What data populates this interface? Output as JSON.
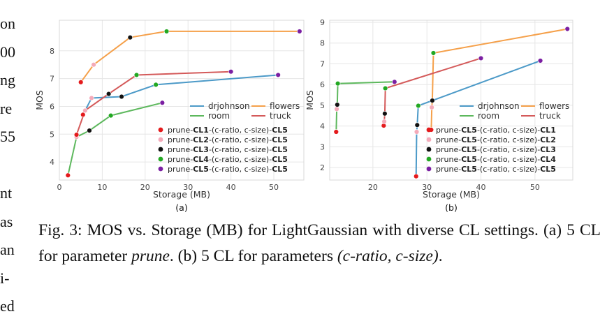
{
  "left_margin_text": [
    "on",
    "00",
    "ng",
    "re",
    "55",
    "",
    "nt",
    "as",
    "an",
    "i-",
    "ed"
  ],
  "caption": {
    "part1": "Fig. 3: MOS vs. Storage (MB) for LightGaussian with diverse CL settings. (a) 5 CL for parameter ",
    "italic1": "prune",
    "part2": ". (b) 5 CL for parameters ",
    "italic2": "(c-ratio, c-size)",
    "part3": "."
  },
  "colors": {
    "drjohnson": "#4C9AC8",
    "flowers": "#F5A04A",
    "room": "#5DB85D",
    "truck": "#D45A5A",
    "CL1": "#E41A1C",
    "CL2": "#F4AAB9",
    "CL3": "#111111",
    "CL4": "#22A822",
    "CL5": "#7B1FA2"
  },
  "chart_data": [
    {
      "type": "line",
      "panel_label": "(a)",
      "xlabel": "Storage (MB)",
      "ylabel": "MOS",
      "xlim": [
        0,
        57
      ],
      "ylim": [
        3.35,
        9.1
      ],
      "xticks": [
        0,
        10,
        20,
        30,
        40,
        50
      ],
      "yticks": [
        4,
        5,
        6,
        7,
        8
      ],
      "grid": true,
      "legend_placement": "right",
      "series": [
        {
          "name": "drjohnson",
          "color_key": "drjohnson",
          "points": [
            [
              5.5,
              5.7
            ],
            [
              7.5,
              6.3
            ],
            [
              14.5,
              6.35
            ],
            [
              22.5,
              6.78
            ],
            [
              51,
              7.13
            ]
          ],
          "markers": [
            "CL1",
            "CL2",
            "CL3",
            "CL4",
            "CL5"
          ]
        },
        {
          "name": "flowers",
          "color_key": "flowers",
          "points": [
            [
              5.0,
              6.87
            ],
            [
              8.0,
              7.5
            ],
            [
              16.5,
              8.48
            ],
            [
              25,
              8.7
            ],
            [
              56,
              8.7
            ]
          ],
          "markers": [
            "CL1",
            "CL2",
            "CL3",
            "CL4",
            "CL5"
          ]
        },
        {
          "name": "room",
          "color_key": "room",
          "points": [
            [
              2.0,
              3.52
            ],
            [
              4.0,
              4.9
            ],
            [
              7.0,
              5.13
            ],
            [
              12.0,
              5.67
            ],
            [
              24.0,
              6.13
            ]
          ],
          "markers": [
            "CL1",
            "CL2",
            "CL3",
            "CL4",
            "CL5"
          ]
        },
        {
          "name": "truck",
          "color_key": "truck",
          "points": [
            [
              4.0,
              4.98
            ],
            [
              6.0,
              5.85
            ],
            [
              11.5,
              6.45
            ],
            [
              18.0,
              7.13
            ],
            [
              40.0,
              7.25
            ]
          ],
          "markers": [
            "CL1",
            "CL2",
            "CL3",
            "CL4",
            "CL5"
          ]
        }
      ],
      "legend_lines": [
        "drjohnson",
        "flowers",
        "room",
        "truck"
      ],
      "legend_markers": [
        {
          "marker": "CL1",
          "pre": "prune-",
          "b1": "CL1",
          "mid": "-(c-ratio, c-size)-",
          "b2": "CL5"
        },
        {
          "marker": "CL2",
          "pre": "prune-",
          "b1": "CL2",
          "mid": "-(c-ratio, c-size)-",
          "b2": "CL5"
        },
        {
          "marker": "CL3",
          "pre": "prune-",
          "b1": "CL3",
          "mid": "-(c-ratio, c-size)-",
          "b2": "CL5"
        },
        {
          "marker": "CL4",
          "pre": "prune-",
          "b1": "CL4",
          "mid": "-(c-ratio, c-size)-",
          "b2": "CL5"
        },
        {
          "marker": "CL5",
          "pre": "prune-",
          "b1": "CL5",
          "mid": "-(c-ratio, c-size)-",
          "b2": "CL5"
        }
      ]
    },
    {
      "type": "line",
      "panel_label": "(b)",
      "xlabel": "Storage (MB)",
      "ylabel": "MOS",
      "xlim": [
        12,
        57
      ],
      "ylim": [
        1.4,
        9.1
      ],
      "xticks": [
        20,
        30,
        40,
        50
      ],
      "yticks": [
        2,
        3,
        4,
        5,
        6,
        7,
        8,
        9
      ],
      "grid": true,
      "legend_placement": "right",
      "series": [
        {
          "name": "drjohnson",
          "color_key": "drjohnson",
          "points": [
            [
              28.0,
              1.58
            ],
            [
              28.1,
              3.72
            ],
            [
              28.2,
              4.05
            ],
            [
              28.4,
              4.98
            ],
            [
              51.0,
              7.15
            ]
          ],
          "markers": [
            "CL1",
            "CL2",
            "CL3",
            "CL4",
            "CL5"
          ]
        },
        {
          "name": "flowers",
          "color_key": "flowers",
          "points": [
            [
              30.8,
              3.82
            ],
            [
              30.9,
              4.9
            ],
            [
              31.0,
              5.23
            ],
            [
              31.2,
              7.52
            ],
            [
              56.0,
              8.68
            ]
          ],
          "markers": [
            "CL1",
            "CL2",
            "CL3",
            "CL4",
            "CL5"
          ]
        },
        {
          "name": "room",
          "color_key": "room",
          "points": [
            [
              13.2,
              3.72
            ],
            [
              13.3,
              4.82
            ],
            [
              13.4,
              5.03
            ],
            [
              13.5,
              6.05
            ],
            [
              24.0,
              6.13
            ]
          ],
          "markers": [
            "CL1",
            "CL2",
            "CL3",
            "CL4",
            "CL5"
          ]
        },
        {
          "name": "truck",
          "color_key": "truck",
          "points": [
            [
              22.0,
              4.02
            ],
            [
              22.1,
              4.22
            ],
            [
              22.2,
              4.6
            ],
            [
              22.3,
              5.82
            ],
            [
              40.0,
              7.27
            ]
          ],
          "markers": [
            "CL1",
            "CL2",
            "CL3",
            "CL4",
            "CL5"
          ]
        }
      ],
      "legend_lines": [
        "drjohnson",
        "flowers",
        "room",
        "truck"
      ],
      "legend_markers": [
        {
          "marker": "CL1",
          "pre": "prune-",
          "b1": "CL5",
          "mid": "-(c-ratio, c-size)-",
          "b2": "CL1"
        },
        {
          "marker": "CL2",
          "pre": "prune-",
          "b1": "CL5",
          "mid": "-(c-ratio, c-size)-",
          "b2": "CL2"
        },
        {
          "marker": "CL3",
          "pre": "prune-",
          "b1": "CL5",
          "mid": "-(c-ratio, c-size)-",
          "b2": "CL3"
        },
        {
          "marker": "CL4",
          "pre": "prune-",
          "b1": "CL5",
          "mid": "-(c-ratio, c-size)-",
          "b2": "CL4"
        },
        {
          "marker": "CL5",
          "pre": "prune-",
          "b1": "CL5",
          "mid": "-(c-ratio, c-size)-",
          "b2": "CL5"
        }
      ]
    }
  ]
}
